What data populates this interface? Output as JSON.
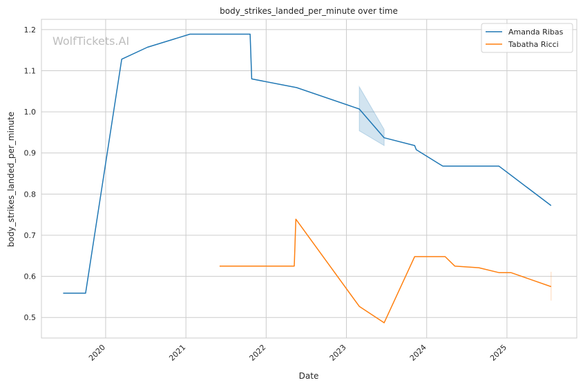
{
  "chart_data": {
    "type": "line",
    "title": "body_strikes_landed_per_minute over time",
    "xlabel": "Date",
    "ylabel": "body_strikes_landed_per_minute",
    "watermark": "WolfTickets.AI",
    "grid": true,
    "legend_position": "top-right",
    "xlim": [
      2019.2,
      2025.87
    ],
    "ylim": [
      0.45,
      1.225
    ],
    "x_ticks": [
      {
        "value": 2020,
        "label": "2020"
      },
      {
        "value": 2021,
        "label": "2021"
      },
      {
        "value": 2022,
        "label": "2022"
      },
      {
        "value": 2023,
        "label": "2023"
      },
      {
        "value": 2024,
        "label": "2024"
      },
      {
        "value": 2025,
        "label": "2025"
      }
    ],
    "y_ticks": [
      {
        "value": 0.5,
        "label": "0.5"
      },
      {
        "value": 0.6,
        "label": "0.6"
      },
      {
        "value": 0.7,
        "label": "0.7"
      },
      {
        "value": 0.8,
        "label": "0.8"
      },
      {
        "value": 0.9,
        "label": "0.9"
      },
      {
        "value": 1.0,
        "label": "1.0"
      },
      {
        "value": 1.1,
        "label": "1.1"
      },
      {
        "value": 1.2,
        "label": "1.2"
      }
    ],
    "series": [
      {
        "name": "Amanda Ribas",
        "color": "#1f77b4",
        "points": [
          [
            2019.47,
            0.559
          ],
          [
            2019.75,
            0.559
          ],
          [
            2020.2,
            1.128
          ],
          [
            2020.52,
            1.157
          ],
          [
            2021.05,
            1.189
          ],
          [
            2021.8,
            1.189
          ],
          [
            2021.82,
            1.08
          ],
          [
            2022.38,
            1.059
          ],
          [
            2023.16,
            1.007
          ],
          [
            2023.47,
            0.937
          ],
          [
            2023.85,
            0.918
          ],
          [
            2023.87,
            0.908
          ],
          [
            2024.2,
            0.868
          ],
          [
            2024.9,
            0.868
          ],
          [
            2025.55,
            0.772
          ]
        ],
        "band": [
          [
            2023.16,
            0.954,
            1.061
          ],
          [
            2023.47,
            0.918,
            0.957
          ]
        ]
      },
      {
        "name": "Tabatha Ricci",
        "color": "#ff7f0e",
        "points": [
          [
            2021.42,
            0.625
          ],
          [
            2022.35,
            0.625
          ],
          [
            2022.37,
            0.739
          ],
          [
            2023.16,
            0.527
          ],
          [
            2023.47,
            0.487
          ],
          [
            2023.85,
            0.648
          ],
          [
            2024.23,
            0.648
          ],
          [
            2024.35,
            0.625
          ],
          [
            2024.65,
            0.621
          ],
          [
            2024.9,
            0.609
          ],
          [
            2025.05,
            0.609
          ],
          [
            2025.55,
            0.575
          ]
        ],
        "band": [
          [
            2025.55,
            0.541,
            0.611
          ]
        ]
      }
    ]
  }
}
